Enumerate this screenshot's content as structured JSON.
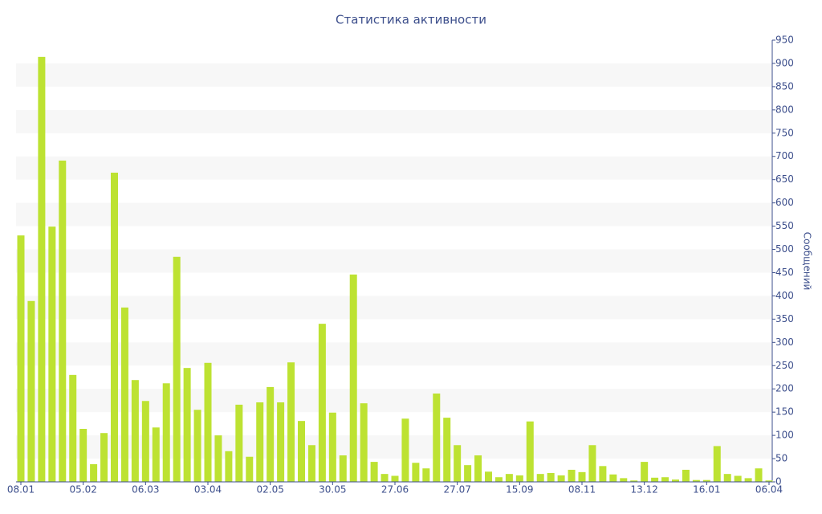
{
  "chart_data": {
    "type": "bar",
    "title": "Статистика активности",
    "y_label": "Сообщений",
    "categories": [
      "08.01",
      null,
      null,
      null,
      null,
      null,
      "05.02",
      null,
      null,
      null,
      null,
      null,
      "06.03",
      null,
      null,
      null,
      null,
      null,
      "03.04",
      null,
      null,
      null,
      null,
      null,
      "02.05",
      null,
      null,
      null,
      null,
      null,
      "30.05",
      null,
      null,
      null,
      null,
      null,
      "27.06",
      null,
      null,
      null,
      null,
      null,
      "27.07",
      null,
      null,
      null,
      null,
      null,
      "15.09",
      null,
      null,
      null,
      null,
      null,
      "08.11",
      null,
      null,
      null,
      null,
      null,
      "13.12",
      null,
      null,
      null,
      null,
      null,
      "16.01",
      null,
      null,
      null,
      null,
      null,
      "06.04"
    ],
    "values": [
      530,
      389,
      914,
      549,
      691,
      230,
      114,
      38,
      105,
      665,
      375,
      219,
      174,
      117,
      212,
      484,
      245,
      155,
      256,
      100,
      66,
      166,
      54,
      171,
      204,
      171,
      257,
      131,
      79,
      340,
      149,
      57,
      446,
      169,
      43,
      17,
      13,
      136,
      41,
      29,
      190,
      138,
      79,
      36,
      57,
      22,
      10,
      17,
      14,
      130,
      17,
      19,
      14,
      26,
      21,
      79,
      34,
      16,
      8,
      3,
      43,
      9,
      10,
      5,
      26,
      4,
      4,
      77,
      17,
      13,
      8,
      29,
      3
    ],
    "color": "#bde232",
    "ylim": [
      0,
      950
    ],
    "yticks": [
      0,
      50,
      100,
      150,
      200,
      250,
      300,
      350,
      400,
      450,
      500,
      550,
      600,
      650,
      700,
      750,
      800,
      850,
      900,
      950
    ],
    "grid": "alternate-bands",
    "y_axis_side": "right"
  }
}
